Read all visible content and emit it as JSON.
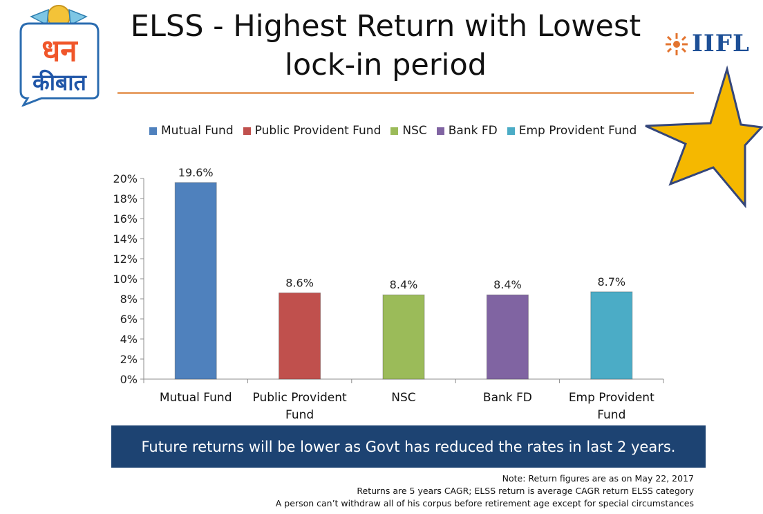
{
  "header": {
    "title_line1": "ELSS - Highest Return with Lowest",
    "title_line2": "lock-in period",
    "logo_left": {
      "line1": "धन",
      "line2": "कीबात"
    },
    "logo_right": {
      "text": "IIFL"
    }
  },
  "chart_data": {
    "type": "bar",
    "categories": [
      "Mutual Fund",
      "Public Provident Fund",
      "NSC",
      "Bank FD",
      "Emp Provident Fund"
    ],
    "category_labels": [
      [
        "Mutual Fund"
      ],
      [
        "Public Provident",
        "Fund"
      ],
      [
        "NSC"
      ],
      [
        "Bank FD"
      ],
      [
        "Emp Provident",
        "Fund"
      ]
    ],
    "values": [
      19.6,
      8.6,
      8.4,
      8.4,
      8.7
    ],
    "data_labels": [
      "19.6%",
      "8.6%",
      "8.4%",
      "8.4%",
      "8.7%"
    ],
    "colors": [
      "#4f81bd",
      "#c0504d",
      "#9bbb59",
      "#8064a2",
      "#4bacc6"
    ],
    "legend": [
      "Mutual Fund",
      "Public Provident Fund",
      "NSC",
      "Bank FD",
      "Emp Provident Fund"
    ],
    "legend_position": "top",
    "ylim": [
      0,
      20
    ],
    "yticks": [
      "0%",
      "2%",
      "4%",
      "6%",
      "8%",
      "10%",
      "12%",
      "14%",
      "16%",
      "18%",
      "20%"
    ],
    "grid": false,
    "title": "",
    "xlabel": "",
    "ylabel": ""
  },
  "banner": {
    "text": "Future returns will be lower as Govt has reduced the rates in last 2 years."
  },
  "notes": [
    "Note: Return figures are as on May 22, 2017",
    "Returns are 5 years CAGR; ELSS return is average CAGR return ELSS category",
    "A person can’t withdraw all of his corpus before retirement age except  for special circumstances"
  ],
  "colors": {
    "accent_rule": "#e8a26a",
    "banner_bg": "#1d4372",
    "star_fill": "#f5b800",
    "star_stroke": "#34467a"
  }
}
